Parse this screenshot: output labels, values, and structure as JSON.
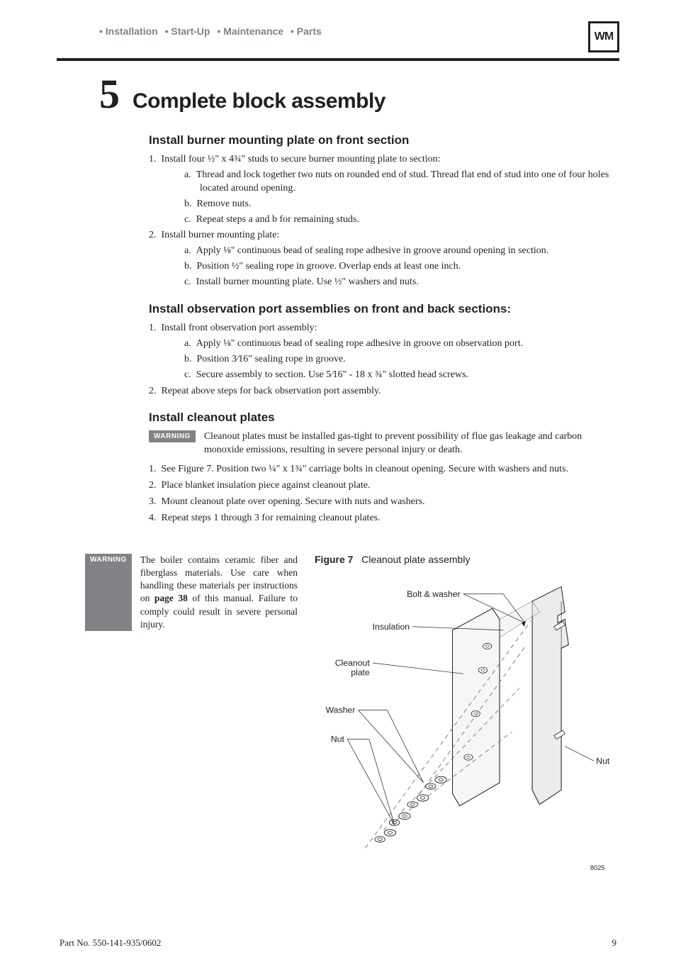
{
  "header": {
    "crumbs": [
      "• Installation",
      "• Start-Up",
      "• Maintenance",
      "• Parts"
    ],
    "logo_text": "WM"
  },
  "chapter": {
    "num": "5",
    "title": "Complete block assembly"
  },
  "sections": {
    "s1": {
      "heading": "Install burner mounting plate on front section",
      "p1": "Install four ½\" x 4¾\" studs to secure burner mounting plate to section:",
      "p1a": "Thread and lock together two nuts on rounded end of stud. Thread flat end of stud into one of four holes located around opening.",
      "p1b": "Remove nuts.",
      "p1c": "Repeat steps a and b for remaining studs.",
      "p2": "Install burner mounting plate:",
      "p2a": "Apply ⅛\" continuous bead of sealing rope adhesive in groove around opening in section.",
      "p2b": "Position ½\" sealing rope in groove. Overlap ends at least one inch.",
      "p2c": "Install burner mounting plate. Use ½\" washers and nuts."
    },
    "s2": {
      "heading": "Install observation port assemblies on front and back sections:",
      "p1": "Install front observation port assembly:",
      "p1a": "Apply ⅛\" continuous bead of sealing rope adhesive in groove on observation port.",
      "p1b": "Position 3⁄16\" sealing rope in groove.",
      "p1c": "Secure assembly to section. Use 5⁄16\" - 18 x ¾\" slotted head screws.",
      "p2": "Repeat above steps for back observation port assembly."
    },
    "s3": {
      "heading": "Install cleanout plates",
      "warn_label": "WARNING",
      "warn_text": "Cleanout plates must be installed gas-tight to prevent possibility of flue gas leakage and carbon monoxide emissions, resulting in severe personal injury or death.",
      "p1": "See Figure 7. Position two ¼\" x 1¾\" carriage bolts in cleanout opening. Secure with washers and nuts.",
      "p2": "Place blanket insulation piece against cleanout plate.",
      "p3": "Mount cleanout plate over opening. Secure with nuts and washers.",
      "p4": "Repeat steps 1 through 3 for remaining  cleanout plates."
    }
  },
  "lower_warning": {
    "label": "WARNING",
    "text_a": "The boiler contains ceramic fiber and fiberglass materials. Use care when handling these materials per instructions on ",
    "page_ref": "page 38",
    "text_b": " of this manual. Failure to comply could result in severe personal injury."
  },
  "figure": {
    "label": "Figure 7",
    "title": "Cleanout plate assembly",
    "parts": {
      "bolt_washer": "Bolt & washer",
      "insulation": "Insulation",
      "cleanout_plate": "Cleanout\nplate",
      "washer": "Washer",
      "nut_left": "Nut",
      "nut_right": "Nut"
    },
    "id_tag": "8025",
    "colors": {
      "stroke": "#231f20",
      "fill_plate": "#f6f6f6",
      "fill_mid": "#ececec",
      "dash": "#808285",
      "label_font": "Arial"
    }
  },
  "footer": {
    "partno": "Part No. 550-141-935/0602",
    "pagenum": "9"
  }
}
